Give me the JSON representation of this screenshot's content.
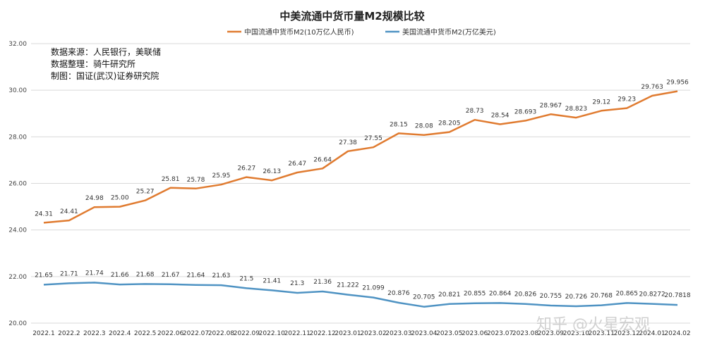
{
  "chart_data": {
    "type": "line",
    "title": "中美流通中货币量M2规模比较",
    "notes": [
      "数据来源：人民银行，美联储",
      "数据整理：骑牛研究所",
      "制图：国证(武汉)证券研究院"
    ],
    "watermark": "知乎 @火星宏观",
    "categories": [
      "2022.1",
      "2022.2",
      "2022.3",
      "2022.4",
      "2022.5",
      "2022.06",
      "2022.07",
      "2022.08",
      "2022.09",
      "2022.10",
      "2022.11",
      "2022.12",
      "2023.01",
      "2023.02",
      "2023.03",
      "2023.04",
      "2023.05",
      "2023.06",
      "2023.07",
      "2023.08",
      "2023.09",
      "2023.10",
      "2023.11",
      "2023.12",
      "2024.01",
      "2024.02"
    ],
    "ylim": [
      20,
      32
    ],
    "yticks": [
      "20.00",
      "22.00",
      "24.00",
      "26.00",
      "28.00",
      "30.00",
      "32.00"
    ],
    "grid": true,
    "legend_position": "top",
    "series": [
      {
        "name": "中国流通中货币M2(10万亿人民币)",
        "color": "#e07b30",
        "values": [
          24.31,
          24.41,
          24.98,
          25.0,
          25.27,
          25.81,
          25.78,
          25.95,
          26.27,
          26.13,
          26.47,
          26.64,
          27.38,
          27.55,
          28.15,
          28.08,
          28.205,
          28.73,
          28.54,
          28.693,
          28.967,
          28.823,
          29.12,
          29.23,
          29.763,
          29.956
        ],
        "labels": [
          "24.31",
          "24.41",
          "24.98",
          "25.00",
          "25.27",
          "25.81",
          "25.78",
          "25.95",
          "26.27",
          "26.13",
          "26.47",
          "26.64",
          "27.38",
          "27.55",
          "28.15",
          "28.08",
          "28.205",
          "28.73",
          "28.54",
          "28.693",
          "28.967",
          "28.823",
          "29.12",
          "29.23",
          "29.763",
          "29.956"
        ]
      },
      {
        "name": "美国流通中货币M2(万亿美元)",
        "color": "#4f93c3",
        "values": [
          21.65,
          21.71,
          21.74,
          21.66,
          21.68,
          21.67,
          21.64,
          21.63,
          21.5,
          21.41,
          21.3,
          21.36,
          21.222,
          21.099,
          20.876,
          20.705,
          20.821,
          20.855,
          20.864,
          20.826,
          20.755,
          20.726,
          20.768,
          20.865,
          20.8272,
          20.7818
        ],
        "labels": [
          "21.65",
          "21.71",
          "21.74",
          "21.66",
          "21.68",
          "21.67",
          "21.64",
          "21.63",
          "21.5",
          "21.41",
          "21.3",
          "21.36",
          "21.222",
          "21.099",
          "20.876",
          "20.705",
          "20.821",
          "20.855",
          "20.864",
          "20.826",
          "20.755",
          "20.726",
          "20.768",
          "20.865",
          "20.8272",
          "20.7818"
        ]
      }
    ]
  }
}
